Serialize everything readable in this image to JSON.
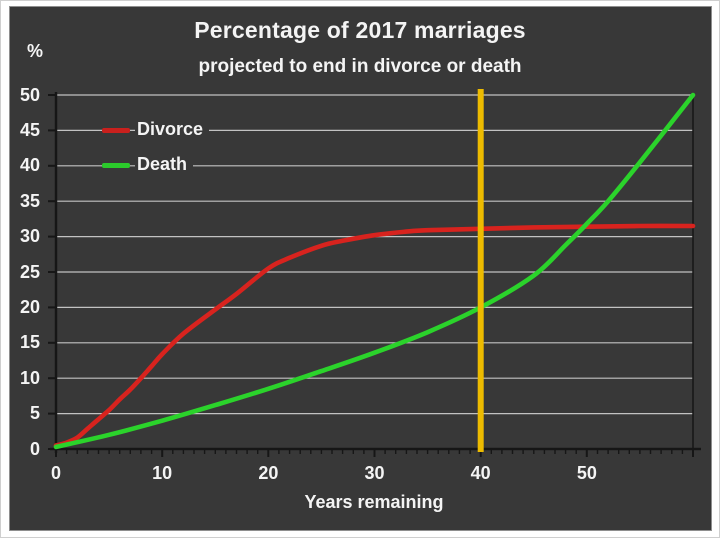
{
  "page": {
    "title": "Percentage of 2017 marriages",
    "subtitle": "projected to end in divorce or death",
    "y_axis_unit": "%",
    "x_axis_title": "Years remaining"
  },
  "legend": [
    {
      "label": "Divorce",
      "color": "#c9201d"
    },
    {
      "label": "Death",
      "color": "#2bc92b"
    }
  ],
  "colors": {
    "page_background": "#ffffff",
    "chart_background": "#383838",
    "chart_border": "#8f8f8f",
    "gridline": "#c2c2c2",
    "axis": "#161616",
    "text": "#f4f4f4",
    "divorce_line": "#d8231e",
    "death_line": "#2bd32b",
    "marker_line": "#edbb00"
  },
  "chart_data": {
    "type": "line",
    "title": "Percentage of 2017 marriages projected to end in divorce or death",
    "xlabel": "Years remaining",
    "ylabel": "%",
    "xlim": [
      0,
      60
    ],
    "ylim": [
      0,
      50
    ],
    "x_ticks": [
      0,
      10,
      20,
      30,
      40,
      50
    ],
    "y_ticks": [
      0,
      5,
      10,
      15,
      20,
      25,
      30,
      35,
      40,
      45,
      50
    ],
    "x_minor_tick_step": 1,
    "grid": "horizontal",
    "legend_position": "top-left",
    "marker_vline_x": 40,
    "series": [
      {
        "name": "Divorce",
        "color": "#d8231e",
        "points": [
          [
            0,
            0.5
          ],
          [
            1,
            0.9
          ],
          [
            2,
            1.6
          ],
          [
            3,
            2.9
          ],
          [
            4,
            4.2
          ],
          [
            5,
            5.5
          ],
          [
            6,
            7.0
          ],
          [
            7,
            8.4
          ],
          [
            8,
            10.0
          ],
          [
            9,
            11.7
          ],
          [
            10,
            13.4
          ],
          [
            12,
            16.3
          ],
          [
            15,
            19.7
          ],
          [
            17,
            21.9
          ],
          [
            20,
            25.5
          ],
          [
            22,
            27.0
          ],
          [
            25,
            28.7
          ],
          [
            27,
            29.4
          ],
          [
            30,
            30.2
          ],
          [
            33,
            30.7
          ],
          [
            35,
            30.9
          ],
          [
            40,
            31.1
          ],
          [
            45,
            31.3
          ],
          [
            50,
            31.4
          ],
          [
            55,
            31.5
          ],
          [
            60,
            31.5
          ]
        ]
      },
      {
        "name": "Death",
        "color": "#2bd32b",
        "points": [
          [
            0,
            0.3
          ],
          [
            5,
            2.0
          ],
          [
            10,
            4.0
          ],
          [
            15,
            6.2
          ],
          [
            20,
            8.5
          ],
          [
            25,
            11.0
          ],
          [
            30,
            13.6
          ],
          [
            35,
            16.5
          ],
          [
            40,
            20.0
          ],
          [
            45,
            24.5
          ],
          [
            48,
            28.8
          ],
          [
            50,
            31.8
          ],
          [
            52,
            35.0
          ],
          [
            55,
            40.5
          ],
          [
            60,
            50.0
          ]
        ]
      }
    ]
  }
}
